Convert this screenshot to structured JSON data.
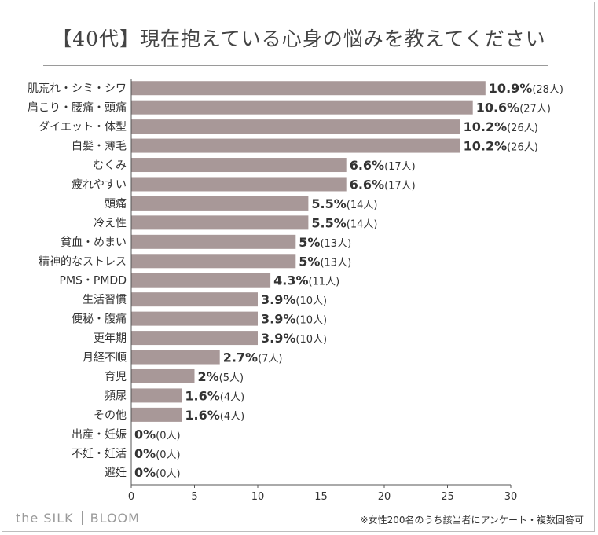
{
  "title": "【40代】現在抱えている心身の悩みを教えてください",
  "footnote": "※女性200名のうち該当者にアンケート・複数回答可",
  "logo": {
    "left": "the SILK",
    "right": "BLOOM"
  },
  "colors": {
    "bar": "#a89898",
    "axis": "#555555",
    "text": "#333333"
  },
  "chart_data": {
    "type": "bar",
    "orientation": "horizontal",
    "categories": [
      "肌荒れ・シミ・シワ",
      "肩こり・腰痛・頭痛",
      "ダイエット・体型",
      "白髪・薄毛",
      "むくみ",
      "疲れやすい",
      "頭痛",
      "冷え性",
      "貧血・めまい",
      "精神的なストレス",
      "PMS・PMDD",
      "生活習慣",
      "便秘・腹痛",
      "更年期",
      "月経不順",
      "育児",
      "頻尿",
      "その他",
      "出産・妊娠",
      "不妊・妊活",
      "避妊"
    ],
    "values": [
      28,
      27,
      26,
      26,
      17,
      17,
      14,
      14,
      13,
      13,
      11,
      10,
      10,
      10,
      7,
      5,
      4,
      4,
      0,
      0,
      0
    ],
    "percent_labels": [
      "10.9%",
      "10.6%",
      "10.2%",
      "10.2%",
      "6.6%",
      "6.6%",
      "5.5%",
      "5.5%",
      "5%",
      "5%",
      "4.3%",
      "3.9%",
      "3.9%",
      "3.9%",
      "2.7%",
      "2%",
      "1.6%",
      "1.6%",
      "0%",
      "0%",
      "0%"
    ],
    "count_labels": [
      "(28人)",
      "(27人)",
      "(26人)",
      "(26人)",
      "(17人)",
      "(17人)",
      "(14人)",
      "(14人)",
      "(13人)",
      "(13人)",
      "(11人)",
      "(10人)",
      "(10人)",
      "(10人)",
      "(7人)",
      "(5人)",
      "(4人)",
      "(4人)",
      "(0人)",
      "(0人)",
      "(0人)"
    ],
    "xticks": [
      "0",
      "5",
      "10",
      "15",
      "20",
      "25",
      "30"
    ],
    "xlim": [
      0,
      30
    ],
    "grid": false,
    "legend": "none"
  }
}
